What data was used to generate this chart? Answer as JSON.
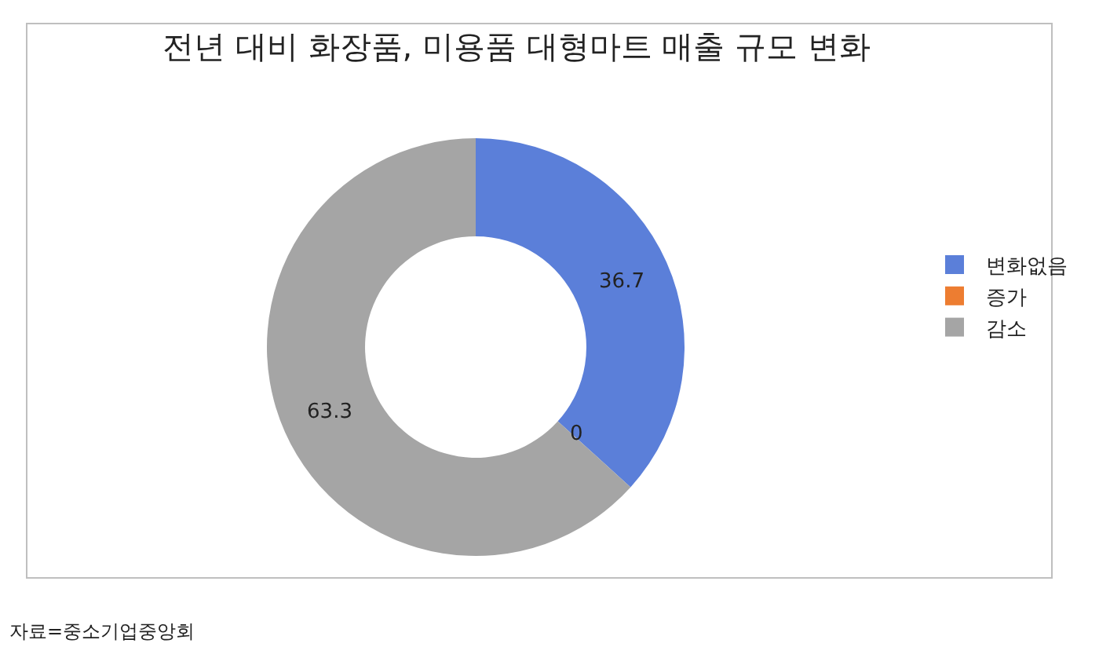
{
  "chart_data": {
    "type": "donut",
    "title": "전년 대비 화장품, 미용품 대형마트 매출 규모 변화",
    "categories": [
      "변화없음",
      "증가",
      "감소"
    ],
    "values": [
      36.7,
      0,
      63.3
    ],
    "colors": [
      "#5b7fd9",
      "#ed7d31",
      "#a5a5a5"
    ],
    "value_labels": [
      "36.7",
      "0",
      "63.3"
    ],
    "legend": "right",
    "annotations": [
      "자료=중소기업중앙회"
    ]
  }
}
